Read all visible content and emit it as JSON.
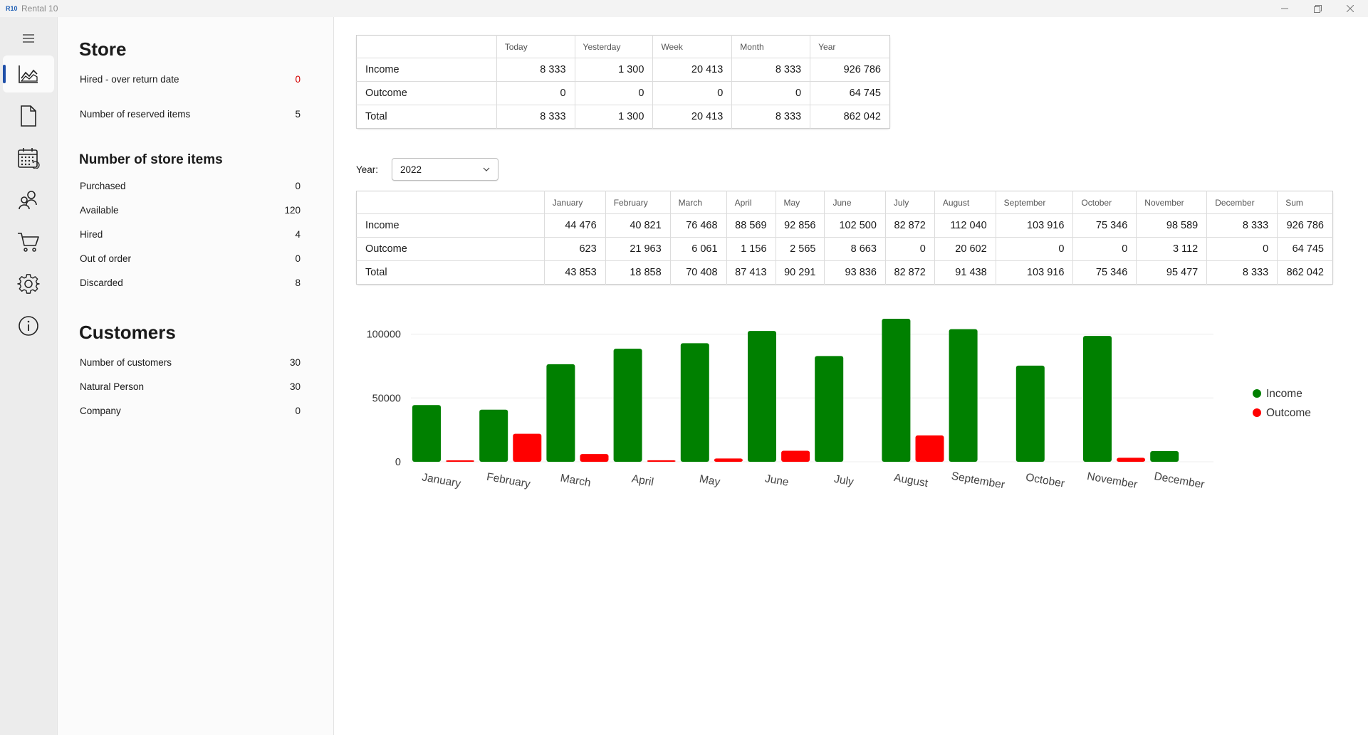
{
  "window": {
    "logo": "R10",
    "title": "Rental 10"
  },
  "nav": {
    "items": [
      {
        "name": "dashboard",
        "icon": "chart-icon",
        "active": true
      },
      {
        "name": "documents",
        "icon": "document-icon"
      },
      {
        "name": "calendar",
        "icon": "calendar-icon"
      },
      {
        "name": "customers",
        "icon": "people-icon"
      },
      {
        "name": "cart",
        "icon": "cart-icon"
      },
      {
        "name": "settings",
        "icon": "gear-icon"
      },
      {
        "name": "about",
        "icon": "info-icon"
      }
    ]
  },
  "stats": {
    "store": {
      "title": "Store",
      "rows": [
        {
          "label": "Hired - over return date",
          "value": "0",
          "alert": true
        },
        {
          "label": "Number of reserved items",
          "value": "5"
        }
      ]
    },
    "store_items": {
      "title": "Number of store items",
      "rows": [
        {
          "label": "Purchased",
          "value": "0"
        },
        {
          "label": "Available",
          "value": "120"
        },
        {
          "label": "Hired",
          "value": "4"
        },
        {
          "label": "Out of order",
          "value": "0"
        },
        {
          "label": "Discarded",
          "value": "8"
        }
      ]
    },
    "customers": {
      "title": "Customers",
      "rows": [
        {
          "label": "Number of customers",
          "value": "30"
        },
        {
          "label": "Natural Person",
          "value": "30"
        },
        {
          "label": "Company",
          "value": "0"
        }
      ]
    }
  },
  "summary_table": {
    "columns": [
      "",
      "Today",
      "Yesterday",
      "Week",
      "Month",
      "Year"
    ],
    "rows": [
      {
        "label": "Income",
        "values": [
          "8 333",
          "1 300",
          "20 413",
          "8 333",
          "926 786"
        ]
      },
      {
        "label": "Outcome",
        "values": [
          "0",
          "0",
          "0",
          "0",
          "64 745"
        ]
      },
      {
        "label": "Total",
        "values": [
          "8 333",
          "1 300",
          "20 413",
          "8 333",
          "862 042"
        ]
      }
    ]
  },
  "year_selector": {
    "label": "Year:",
    "value": "2022"
  },
  "monthly_table": {
    "columns": [
      "",
      "January",
      "February",
      "March",
      "April",
      "May",
      "June",
      "July",
      "August",
      "September",
      "October",
      "November",
      "December",
      "Sum"
    ],
    "rows": [
      {
        "label": "Income",
        "values": [
          "44 476",
          "40 821",
          "76 468",
          "88 569",
          "92 856",
          "102 500",
          "82 872",
          "112 040",
          "103 916",
          "75 346",
          "98 589",
          "8 333",
          "926 786"
        ]
      },
      {
        "label": "Outcome",
        "values": [
          "623",
          "21 963",
          "6 061",
          "1 156",
          "2 565",
          "8 663",
          "0",
          "20 602",
          "0",
          "0",
          "3 112",
          "0",
          "64 745"
        ]
      },
      {
        "label": "Total",
        "values": [
          "43 853",
          "18 858",
          "70 408",
          "87 413",
          "90 291",
          "93 836",
          "82 872",
          "91 438",
          "103 916",
          "75 346",
          "95 477",
          "8 333",
          "862 042"
        ]
      }
    ]
  },
  "chart_data": {
    "type": "bar",
    "categories": [
      "January",
      "February",
      "March",
      "April",
      "May",
      "June",
      "July",
      "August",
      "September",
      "October",
      "November",
      "December"
    ],
    "bar_values": [
      44476,
      623,
      40821,
      21963,
      76468,
      6061,
      88569,
      1156,
      92856,
      2565,
      102500,
      8663,
      82872,
      0,
      112040,
      20602,
      103916,
      0,
      75346,
      0,
      98589,
      3112,
      8333,
      0
    ],
    "series": [
      {
        "name": "Income",
        "color": "#008000"
      },
      {
        "name": "Outcome",
        "color": "#ff0000"
      }
    ],
    "yticks": [
      "100000",
      "50000",
      "0"
    ],
    "ylim": [
      0,
      112040
    ],
    "grid": true,
    "legend": "right"
  }
}
